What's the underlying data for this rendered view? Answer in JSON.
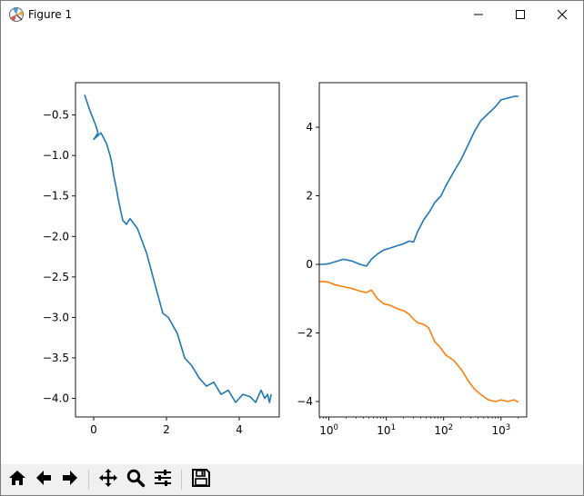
{
  "window": {
    "title": "Figure 1",
    "controls": [
      "minimize-icon",
      "maximize-icon",
      "close-icon"
    ]
  },
  "toolbar": {
    "buttons": [
      {
        "name": "home",
        "icon": "home-icon"
      },
      {
        "name": "back",
        "icon": "arrow-left-icon"
      },
      {
        "name": "forward",
        "icon": "arrow-right-icon"
      },
      {
        "name": "pan",
        "icon": "move-icon"
      },
      {
        "name": "zoom",
        "icon": "magnifier-icon"
      },
      {
        "name": "configure-subplots",
        "icon": "sliders-icon"
      },
      {
        "name": "save",
        "icon": "floppy-disk-icon"
      }
    ]
  },
  "colors": {
    "series1": "#1f77b4",
    "series2": "#ff7f0e",
    "toolbar_bg": "#f0f0f0"
  },
  "chart_data": [
    {
      "type": "line",
      "title": "",
      "xlabel": "",
      "ylabel": "",
      "xlim": [
        -0.5,
        5.1
      ],
      "ylim": [
        -4.23,
        -0.1
      ],
      "xticks": [
        0,
        2,
        4
      ],
      "xtick_labels": [
        "0",
        "2",
        "4"
      ],
      "yticks": [
        -0.5,
        -1.0,
        -1.5,
        -2.0,
        -2.5,
        -3.0,
        -3.5,
        -4.0
      ],
      "ytick_labels": [
        "−0.5",
        "−1.0",
        "−1.5",
        "−2.0",
        "−2.5",
        "−3.0",
        "−3.5",
        "−4.0"
      ],
      "grid": false,
      "series": [
        {
          "color": "#1f77b4",
          "x": [
            -0.25,
            -0.1,
            0.05,
            0.12,
            0.05,
            0.0,
            0.1,
            0.2,
            0.35,
            0.45,
            0.5,
            0.55,
            0.62,
            0.68,
            0.75,
            0.8,
            0.9,
            1.0,
            1.2,
            1.45,
            1.6,
            1.75,
            1.9,
            2.05,
            2.3,
            2.5,
            2.7,
            2.9,
            3.1,
            3.3,
            3.5,
            3.7,
            3.9,
            4.1,
            4.3,
            4.45,
            4.6,
            4.7,
            4.78,
            4.83,
            4.88
          ],
          "y": [
            -0.25,
            -0.45,
            -0.62,
            -0.72,
            -0.77,
            -0.8,
            -0.76,
            -0.72,
            -0.85,
            -1.0,
            -1.1,
            -1.25,
            -1.4,
            -1.55,
            -1.7,
            -1.8,
            -1.85,
            -1.78,
            -1.9,
            -2.2,
            -2.45,
            -2.7,
            -2.95,
            -3.0,
            -3.2,
            -3.5,
            -3.6,
            -3.75,
            -3.85,
            -3.8,
            -3.95,
            -3.9,
            -4.05,
            -3.95,
            -3.98,
            -4.05,
            -3.9,
            -4.0,
            -3.95,
            -4.05,
            -3.95
          ]
        }
      ]
    },
    {
      "type": "line",
      "title": "",
      "xlabel": "",
      "ylabel": "",
      "xscale": "log",
      "xlim": [
        0.68,
        2800
      ],
      "ylim": [
        -4.45,
        5.3
      ],
      "xticks": [
        1,
        10,
        100,
        1000
      ],
      "xtick_labels": [
        [
          "10",
          "0"
        ],
        [
          "10",
          "1"
        ],
        [
          "10",
          "2"
        ],
        [
          "10",
          "3"
        ]
      ],
      "yticks": [
        4,
        2,
        0,
        -2,
        -4
      ],
      "ytick_labels": [
        "4",
        "2",
        "0",
        "−2",
        "−4"
      ],
      "grid": false,
      "series": [
        {
          "color": "#1f77b4",
          "x": [
            0.68,
            0.8,
            1.0,
            1.3,
            1.8,
            2.5,
            3.5,
            4.5,
            5.5,
            7,
            9,
            12,
            16,
            20,
            25,
            30,
            35,
            45,
            55,
            70,
            90,
            110,
            150,
            200,
            270,
            350,
            450,
            600,
            800,
            1000,
            1300,
            1700,
            2000
          ],
          "y": [
            0.0,
            0.0,
            0.02,
            0.08,
            0.15,
            0.1,
            0.0,
            -0.05,
            0.15,
            0.3,
            0.42,
            0.48,
            0.55,
            0.6,
            0.68,
            0.65,
            0.95,
            1.3,
            1.5,
            1.8,
            2.0,
            2.3,
            2.7,
            3.05,
            3.5,
            3.9,
            4.2,
            4.4,
            4.6,
            4.8,
            4.85,
            4.9,
            4.9
          ]
        },
        {
          "color": "#ff7f0e",
          "x": [
            0.68,
            0.8,
            1.0,
            1.3,
            1.8,
            2.5,
            3.5,
            4.5,
            5.5,
            7,
            9,
            12,
            16,
            20,
            25,
            30,
            35,
            45,
            55,
            70,
            90,
            110,
            150,
            200,
            270,
            350,
            450,
            600,
            800,
            1000,
            1300,
            1700,
            2000
          ],
          "y": [
            -0.5,
            -0.5,
            -0.52,
            -0.6,
            -0.65,
            -0.7,
            -0.78,
            -0.82,
            -0.75,
            -1.0,
            -1.15,
            -1.2,
            -1.3,
            -1.35,
            -1.45,
            -1.6,
            -1.7,
            -1.75,
            -1.85,
            -2.25,
            -2.45,
            -2.65,
            -2.8,
            -3.05,
            -3.4,
            -3.65,
            -3.8,
            -3.95,
            -4.0,
            -3.95,
            -4.0,
            -3.95,
            -4.02
          ]
        }
      ]
    }
  ]
}
